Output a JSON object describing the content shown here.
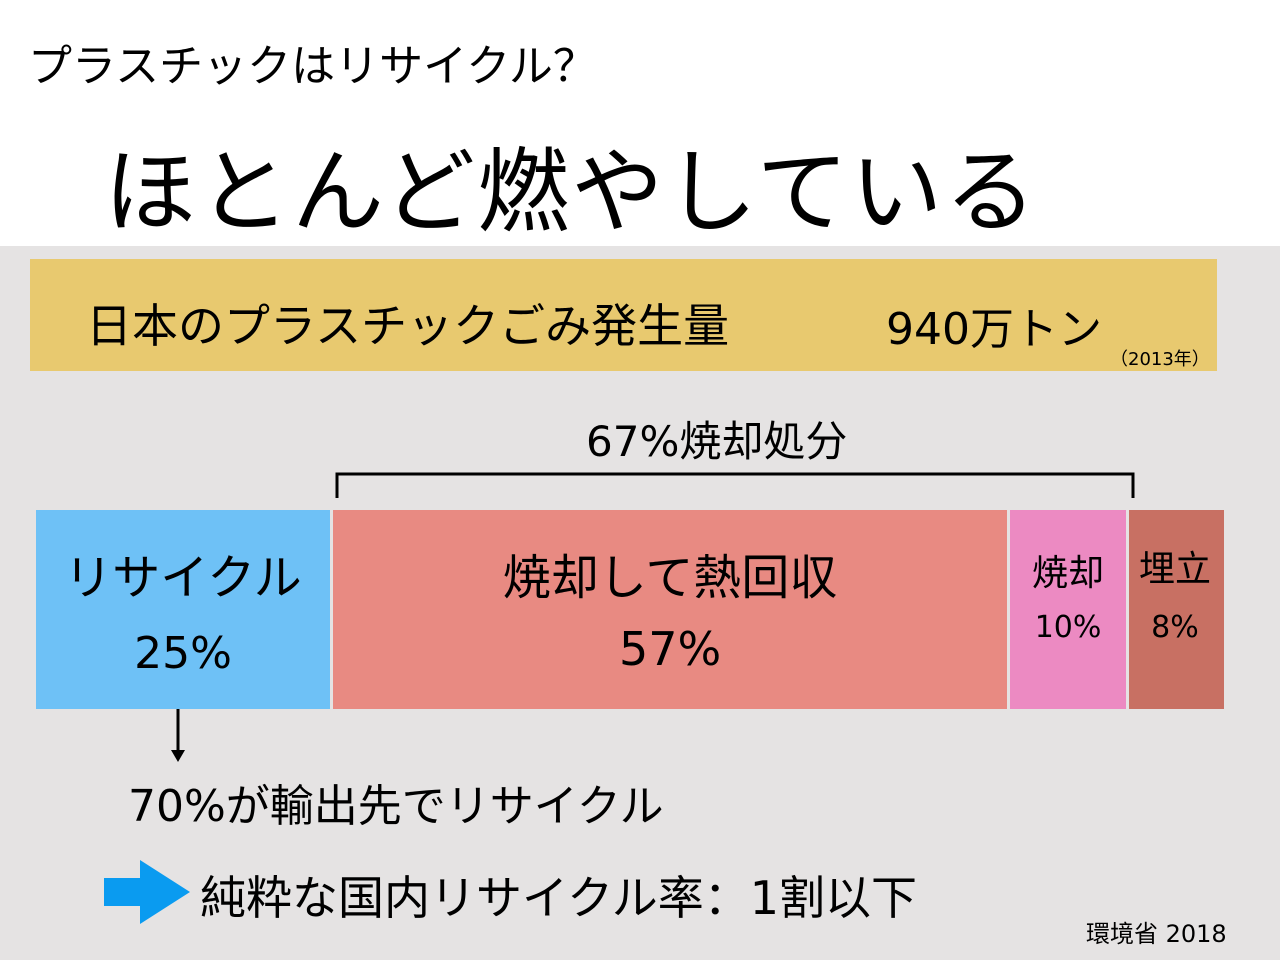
{
  "header": {
    "subtitle": "プラスチックはリサイクル？",
    "headline": "ほとんど燃やしている"
  },
  "banner": {
    "label": "日本のプラスチックごみ発生量",
    "value": "940万トン",
    "year": "（2013年）"
  },
  "colors": {
    "panel": "#e5e3e3",
    "banner": "#e8c96f",
    "recycle": "#6ec1f6",
    "heat_recovery": "#e88a82",
    "incineration": "#ec8ac2",
    "landfill": "#c87063",
    "arrow": "#0a9bf0"
  },
  "chart_data": {
    "type": "bar",
    "orientation": "horizontal-stacked",
    "categories": [
      "リサイクル",
      "焼却して熱回収",
      "焼却",
      "埋立"
    ],
    "values": [
      25,
      57,
      10,
      8
    ],
    "value_labels": [
      "25%",
      "57%",
      "10%",
      "8%"
    ],
    "unit": "%",
    "bracket": {
      "label": "67%焼却処分",
      "covers": [
        "焼却して熱回収",
        "焼却"
      ]
    }
  },
  "notes": {
    "export_recycling": "70%が輸出先でリサイクル",
    "domestic_rate": "純粋な国内リサイクル率：1割以下"
  },
  "source": "環境省 2018"
}
